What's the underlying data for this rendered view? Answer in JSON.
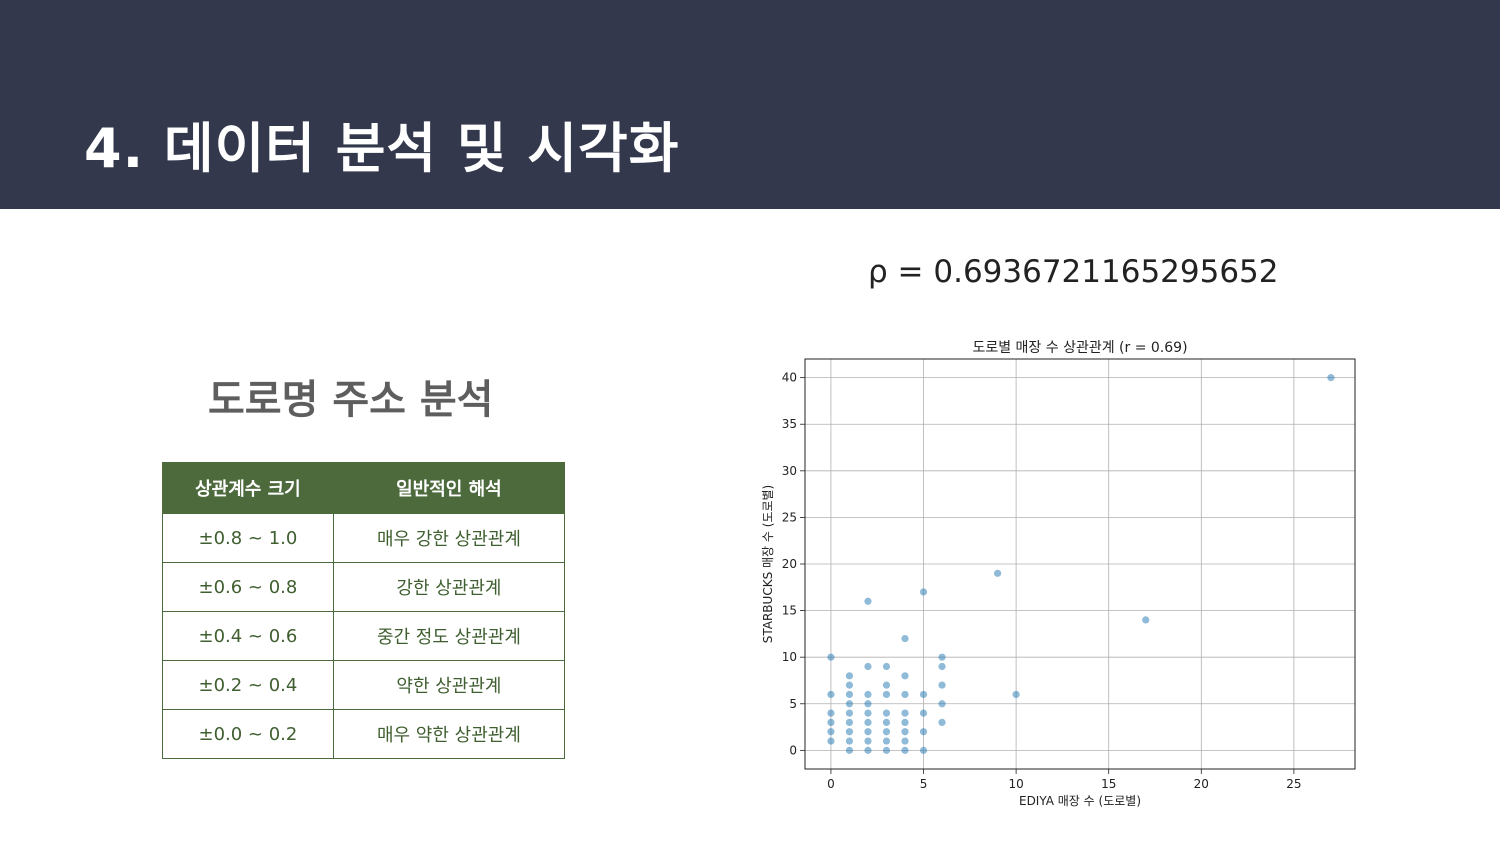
{
  "slide": {
    "title": "4.  데이터 분석 및 시각화",
    "rho_text": "ρ = 0.6936721165295652",
    "section_title": "도로명 주소 분석"
  },
  "table": {
    "headers": [
      "상관계수 크기",
      "일반적인 해석"
    ],
    "rows": [
      [
        "±0.8 ~ 1.0",
        "매우 강한 상관관계"
      ],
      [
        "±0.6 ~ 0.8",
        "강한 상관관계"
      ],
      [
        "±0.4 ~ 0.6",
        "중간 정도 상관관계"
      ],
      [
        "±0.2 ~ 0.4",
        "약한 상관관계"
      ],
      [
        "±0.0 ~ 0.2",
        "매우 약한 상관관계"
      ]
    ]
  },
  "colors": {
    "header_bg": "#33384d",
    "table_green": "#4c6a3c",
    "point": "#1f77b4"
  },
  "chart_data": {
    "type": "scatter",
    "title": "도로별 매장 수 상관관계 (r = 0.69)",
    "xlabel": "EDIYA 매장 수 (도로별)",
    "ylabel": "STARBUCKS 매장 수 (도로별)",
    "xlim": [
      -1.4,
      28.3
    ],
    "ylim": [
      -2.0,
      42.0
    ],
    "xticks": [
      0,
      5,
      10,
      15,
      20,
      25
    ],
    "yticks": [
      0,
      5,
      10,
      15,
      20,
      25,
      30,
      35,
      40
    ],
    "grid": true,
    "points": [
      {
        "x": 0,
        "y": 1
      },
      {
        "x": 0,
        "y": 2
      },
      {
        "x": 0,
        "y": 3
      },
      {
        "x": 0,
        "y": 4
      },
      {
        "x": 0,
        "y": 6
      },
      {
        "x": 0,
        "y": 10
      },
      {
        "x": 1,
        "y": 0
      },
      {
        "x": 1,
        "y": 1
      },
      {
        "x": 1,
        "y": 2
      },
      {
        "x": 1,
        "y": 3
      },
      {
        "x": 1,
        "y": 4
      },
      {
        "x": 1,
        "y": 5
      },
      {
        "x": 1,
        "y": 6
      },
      {
        "x": 1,
        "y": 7
      },
      {
        "x": 1,
        "y": 8
      },
      {
        "x": 2,
        "y": 0
      },
      {
        "x": 2,
        "y": 1
      },
      {
        "x": 2,
        "y": 2
      },
      {
        "x": 2,
        "y": 3
      },
      {
        "x": 2,
        "y": 4
      },
      {
        "x": 2,
        "y": 5
      },
      {
        "x": 2,
        "y": 6
      },
      {
        "x": 2,
        "y": 9
      },
      {
        "x": 2,
        "y": 16
      },
      {
        "x": 3,
        "y": 0
      },
      {
        "x": 3,
        "y": 1
      },
      {
        "x": 3,
        "y": 2
      },
      {
        "x": 3,
        "y": 3
      },
      {
        "x": 3,
        "y": 4
      },
      {
        "x": 3,
        "y": 6
      },
      {
        "x": 3,
        "y": 7
      },
      {
        "x": 3,
        "y": 9
      },
      {
        "x": 4,
        "y": 0
      },
      {
        "x": 4,
        "y": 1
      },
      {
        "x": 4,
        "y": 2
      },
      {
        "x": 4,
        "y": 3
      },
      {
        "x": 4,
        "y": 4
      },
      {
        "x": 4,
        "y": 6
      },
      {
        "x": 4,
        "y": 8
      },
      {
        "x": 4,
        "y": 12
      },
      {
        "x": 5,
        "y": 0
      },
      {
        "x": 5,
        "y": 2
      },
      {
        "x": 5,
        "y": 4
      },
      {
        "x": 5,
        "y": 6
      },
      {
        "x": 5,
        "y": 17
      },
      {
        "x": 6,
        "y": 3
      },
      {
        "x": 6,
        "y": 5
      },
      {
        "x": 6,
        "y": 7
      },
      {
        "x": 6,
        "y": 9
      },
      {
        "x": 6,
        "y": 10
      },
      {
        "x": 9,
        "y": 19
      },
      {
        "x": 10,
        "y": 6
      },
      {
        "x": 17,
        "y": 14
      },
      {
        "x": 27,
        "y": 40
      }
    ]
  }
}
